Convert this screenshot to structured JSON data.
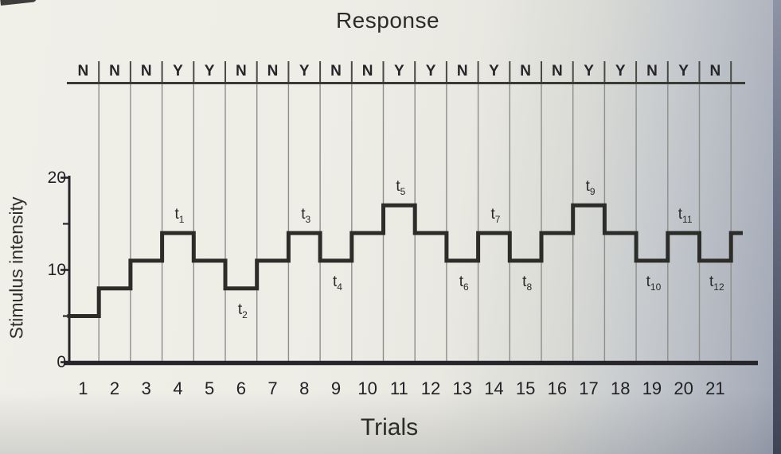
{
  "figure": {
    "title": "Response",
    "xlabel": "Trials",
    "ylabel": "Stimulus intensity"
  },
  "chart_data": {
    "type": "line",
    "subtype": "staircase-psychophysics",
    "title": "Response",
    "xlabel": "Trials",
    "ylabel": "Stimulus intensity",
    "x": [
      1,
      2,
      3,
      4,
      5,
      6,
      7,
      8,
      9,
      10,
      11,
      12,
      13,
      14,
      15,
      16,
      17,
      18,
      19,
      20,
      21
    ],
    "values": [
      5,
      8,
      11,
      14,
      11,
      8,
      11,
      14,
      11,
      14,
      17,
      14,
      11,
      14,
      11,
      14,
      17,
      14,
      11,
      14,
      11
    ],
    "next_trial_stub_value": 14,
    "responses": [
      "N",
      "N",
      "N",
      "Y",
      "Y",
      "N",
      "N",
      "Y",
      "N",
      "N",
      "Y",
      "Y",
      "N",
      "Y",
      "N",
      "N",
      "Y",
      "Y",
      "N",
      "Y",
      "N"
    ],
    "ylim": [
      0,
      20
    ],
    "y_ticks_labeled": [
      0,
      10,
      20
    ],
    "y_ticks_minor": [
      5,
      15
    ],
    "grid": "vertical line per trial boundary",
    "legend": "none",
    "reversal_labels": [
      {
        "base": "t",
        "sub": "1",
        "trial": 4,
        "position": "above"
      },
      {
        "base": "t",
        "sub": "2",
        "trial": 6,
        "position": "below"
      },
      {
        "base": "t",
        "sub": "3",
        "trial": 8,
        "position": "above"
      },
      {
        "base": "t",
        "sub": "4",
        "trial": 9,
        "position": "below"
      },
      {
        "base": "t",
        "sub": "5",
        "trial": 11,
        "position": "above"
      },
      {
        "base": "t",
        "sub": "6",
        "trial": 13,
        "position": "below"
      },
      {
        "base": "t",
        "sub": "7",
        "trial": 14,
        "position": "above"
      },
      {
        "base": "t",
        "sub": "8",
        "trial": 15,
        "position": "below"
      },
      {
        "base": "t",
        "sub": "9",
        "trial": 17,
        "position": "above"
      },
      {
        "base": "t",
        "sub": "10",
        "trial": 19,
        "position": "below"
      },
      {
        "base": "t",
        "sub": "11",
        "trial": 20,
        "position": "above"
      },
      {
        "base": "t",
        "sub": "12",
        "trial": 21,
        "position": "below"
      }
    ],
    "colors": {
      "line": "#2c2c29",
      "gridline": "#8e8e89",
      "axis": "#26262a",
      "page_light": "#efeee7",
      "page_shadow": "#9ba2b1",
      "edge_strip": "#3e4454"
    }
  }
}
